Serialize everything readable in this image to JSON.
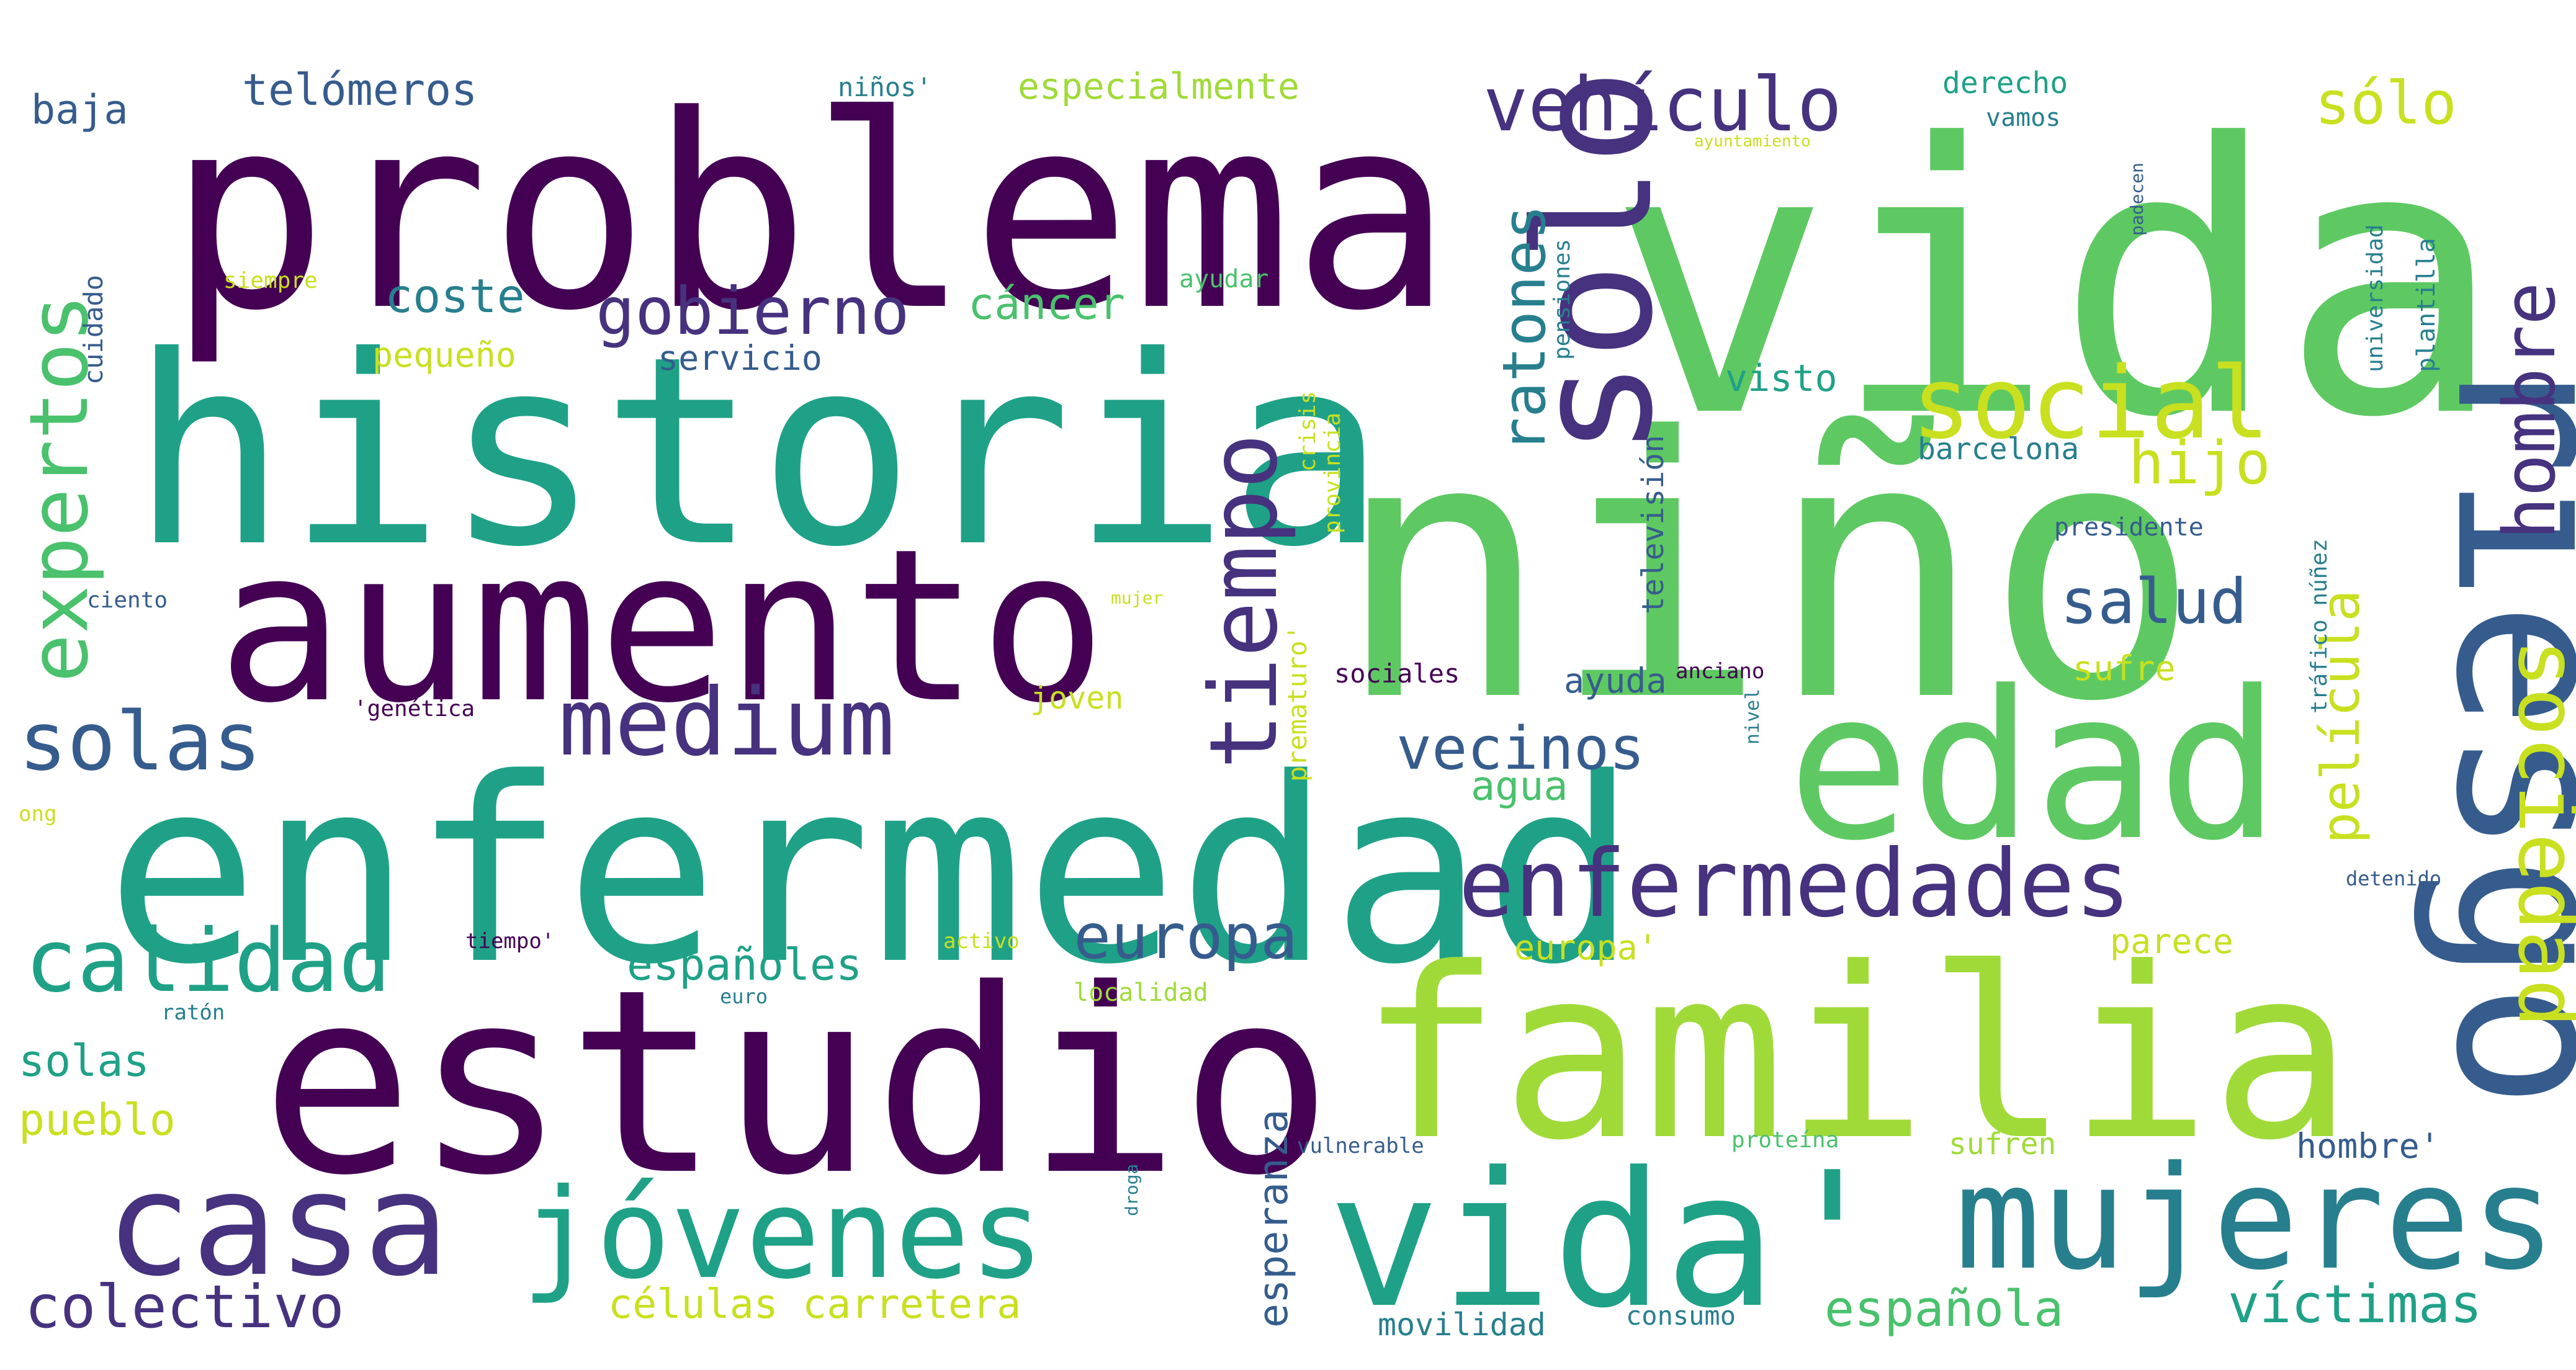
{
  "words": [
    "vida",
    "niño",
    "problema",
    "historia",
    "enfermedad",
    "aumento",
    "estudio",
    "familia",
    "edad",
    "riesgo",
    "solo",
    "vida'",
    "mujeres",
    "casa",
    "jóvenes",
    "medium",
    "social",
    "enfermedades",
    "sociedad",
    "calidad",
    "solas",
    "expertos",
    "tiempo",
    "hombre",
    "vehículo",
    "gobierno",
    "ratones",
    "colectivo",
    "europa",
    "vecinos",
    "salud",
    "hijo",
    "sólo",
    "víctimas",
    "españoles",
    "película",
    "española",
    "telómeros",
    "especialmente",
    "coste",
    "cáncer",
    "visto",
    "células",
    "carretera",
    "pueblo",
    "esperanza",
    "agua",
    "ayuda",
    "baja",
    "servicio",
    "pequeño",
    "derecho",
    "vamos",
    "barcelona",
    "televisión",
    "sufre",
    "parece",
    "europa'",
    "joven",
    "sufren",
    "hombre'",
    "movilidad",
    "consumo",
    "niños'",
    "ayudar",
    "cuidado",
    "siempre",
    "presidente",
    "tráfico",
    "núñez",
    "universidad",
    "plantilla",
    "padecen",
    "prematuro'",
    "provincia",
    "crisis",
    "pensiones",
    "ciento",
    "sociales",
    "anciano",
    "'genética",
    "ong",
    "activo",
    "localidad",
    "tiempo'",
    "detenido",
    "ratón",
    "proteína",
    "vulnerable",
    "droga",
    "nivel",
    "mujer",
    "euro",
    "ayuntamiento"
  ],
  "colors": {
    "c1": "#440154",
    "c2": "#46327e",
    "c3": "#365c8d",
    "c4": "#277f8e",
    "c5": "#1fa187",
    "c6": "#4ac16d",
    "c7": "#5ec962",
    "c8": "#a0da39",
    "c9": "#c8e020",
    "c10": "#d5e21a"
  }
}
